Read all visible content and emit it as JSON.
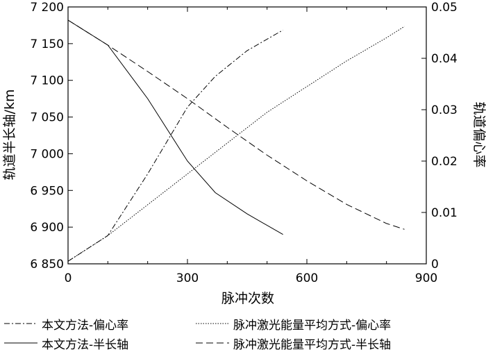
{
  "chart_data": {
    "type": "line",
    "xlabel": "脉冲次数",
    "ylabel_left": "轨道半长轴/km",
    "ylabel_right": "轨道偏心率",
    "xlim": [
      0,
      900
    ],
    "ylim_left": [
      6850,
      7200
    ],
    "ylim_right": [
      0,
      0.05
    ],
    "x_ticks": [
      "0",
      "300",
      "600",
      "900"
    ],
    "y_left_ticks": [
      "6 850",
      "6 900",
      "6 950",
      "7 000",
      "7 050",
      "7 100",
      "7 150",
      "7 200"
    ],
    "y_right_ticks": [
      "0",
      "0.01",
      "0.02",
      "0.03",
      "0.04",
      "0.05"
    ],
    "grid": false,
    "legend_position": "bottom",
    "series": [
      {
        "name": "本文方法-偏心率",
        "axis": "right",
        "dash": "dashdot",
        "x": [
          0,
          100,
          200,
          300,
          370,
          450,
          540
        ],
        "y": [
          0.0005,
          0.0055,
          0.0175,
          0.0305,
          0.0365,
          0.0415,
          0.0455
        ]
      },
      {
        "name": "脉冲激光能量平均方式-偏心率",
        "axis": "right",
        "dash": "dotted",
        "x": [
          0,
          100,
          200,
          300,
          400,
          500,
          600,
          700,
          800,
          845
        ],
        "y": [
          0.0005,
          0.0055,
          0.0115,
          0.0175,
          0.0235,
          0.0295,
          0.0345,
          0.0395,
          0.044,
          0.0462
        ]
      },
      {
        "name": "本文方法-半长轴",
        "axis": "left",
        "dash": "solid",
        "x": [
          0,
          100,
          200,
          300,
          370,
          450,
          540
        ],
        "y": [
          7182,
          7148,
          7075,
          6990,
          6947,
          6918,
          6890
        ]
      },
      {
        "name": "脉冲激光能量平均方式-半长轴",
        "axis": "left",
        "dash": "dashed",
        "x": [
          0,
          100,
          200,
          300,
          400,
          500,
          600,
          700,
          800,
          845
        ],
        "y": [
          7182,
          7148,
          7112,
          7075,
          7036,
          6998,
          6963,
          6931,
          6905,
          6897
        ]
      }
    ]
  }
}
